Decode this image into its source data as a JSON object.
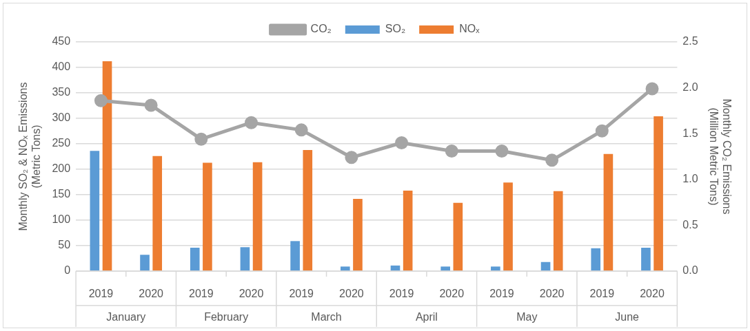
{
  "chart_data": {
    "type": "bar",
    "categories": [
      "2019",
      "2020",
      "2019",
      "2020",
      "2019",
      "2020",
      "2019",
      "2020",
      "2019",
      "2020",
      "2019",
      "2020"
    ],
    "annotations": [
      "January",
      "February",
      "March",
      "April",
      "May",
      "June"
    ],
    "series": [
      {
        "name": "SO₂",
        "color": "#5b9bd5",
        "values": [
          236,
          32,
          46,
          47,
          59,
          9,
          11,
          9,
          9,
          18,
          45,
          46
        ]
      },
      {
        "name": "NOₓ",
        "color": "#ed7d31",
        "values": [
          412,
          226,
          213,
          214,
          238,
          142,
          158,
          134,
          174,
          157,
          230,
          304
        ]
      },
      {
        "name": "CO₂",
        "type": "line",
        "axis": "y2",
        "color": "#a5a5a5",
        "marker": "circle",
        "values": [
          1.86,
          1.81,
          1.44,
          1.62,
          1.54,
          1.24,
          1.4,
          1.31,
          1.31,
          1.21,
          1.53,
          1.99
        ]
      }
    ],
    "ylabel": "Monthly SO₂ & NOₓ Emissions\n(Metric Tons)",
    "y2label": "Monthly CO₂ Emissions\n(Million Metric Tons)",
    "ylim": [
      0,
      450
    ],
    "yticks": [
      0,
      50,
      100,
      150,
      200,
      250,
      300,
      350,
      400,
      450
    ],
    "y2lim": [
      0,
      2.5
    ],
    "y2ticks": [
      {
        "value": 0,
        "label": "0.0"
      },
      {
        "value": 0.5,
        "label": "0.5"
      },
      {
        "value": 1,
        "label": "1.0"
      },
      {
        "value": 1.5,
        "label": "1.5"
      },
      {
        "value": 2,
        "label": "2.0"
      },
      {
        "value": 2.5,
        "label": "2.5"
      }
    ],
    "grid": "y",
    "legend": "top"
  }
}
